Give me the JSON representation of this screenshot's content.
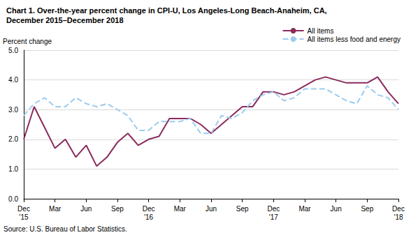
{
  "chart_data": {
    "type": "line",
    "title": "Chart 1. Over-the-year percent change in CPI-U, Los Angeles-Long Beach-Anaheim, CA,\nDecember 2015–December 2018",
    "y_label": "Percent change",
    "annotations": [
      "Source: U.S. Bureau of Labor Statistics."
    ],
    "categories": [
      "Dec\n'15",
      null,
      null,
      "Mar",
      null,
      null,
      "Jun",
      null,
      null,
      "Sep",
      null,
      null,
      "Dec\n'16",
      null,
      null,
      "Mar",
      null,
      null,
      "Jun",
      null,
      null,
      "Sep",
      null,
      null,
      "Dec\n'17",
      null,
      null,
      "Mar",
      null,
      null,
      "Jun",
      null,
      null,
      "Sep",
      null,
      null,
      "Dec\n'18"
    ],
    "series": [
      {
        "name": "All items",
        "color": "#8b2a5c",
        "line_style": "solid",
        "marker": "none",
        "values": [
          2.0,
          3.1,
          2.4,
          1.7,
          2.0,
          1.4,
          1.8,
          1.1,
          1.4,
          1.9,
          2.2,
          1.8,
          2.0,
          2.1,
          2.7,
          2.7,
          2.7,
          2.5,
          2.2,
          2.5,
          2.8,
          3.1,
          3.1,
          3.6,
          3.6,
          3.5,
          3.6,
          3.8,
          4.0,
          4.1,
          4.0,
          3.9,
          3.9,
          3.9,
          4.1,
          3.6,
          3.2
        ]
      },
      {
        "name": "All items less food and energy",
        "color": "#9ccbee",
        "line_style": "dashed",
        "marker": "none",
        "values": [
          2.8,
          3.2,
          3.4,
          3.1,
          3.1,
          3.4,
          3.2,
          3.1,
          3.2,
          3.0,
          2.8,
          2.3,
          2.3,
          2.6,
          2.6,
          2.6,
          2.7,
          2.2,
          2.2,
          2.8,
          2.7,
          2.9,
          3.3,
          3.5,
          3.6,
          3.3,
          3.4,
          3.7,
          3.7,
          3.7,
          3.5,
          3.3,
          3.2,
          3.8,
          3.5,
          3.4,
          3.0
        ]
      }
    ],
    "ylim": [
      0,
      5
    ],
    "yticks": [
      {
        "value": 0,
        "label": "0.0"
      },
      {
        "value": 1,
        "label": "1.0"
      },
      {
        "value": 2,
        "label": "2.0"
      },
      {
        "value": 3,
        "label": "3.0"
      },
      {
        "value": 4,
        "label": "4.0"
      },
      {
        "value": 5,
        "label": "5.0"
      }
    ],
    "grid": true,
    "legend": "top-right"
  }
}
